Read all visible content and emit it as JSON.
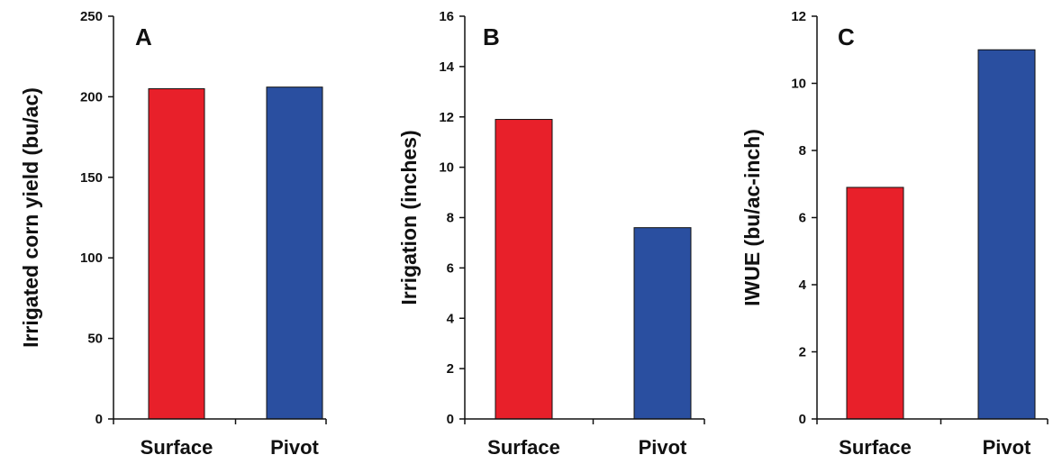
{
  "colors": {
    "surface": "#e8202a",
    "pivot": "#2a4fa0",
    "axis": "#111111"
  },
  "chart_data": [
    {
      "type": "bar",
      "panel": "A",
      "categories": [
        "Surface",
        "Pivot"
      ],
      "values": [
        205,
        206
      ],
      "ylabel": "Irrigated corn yield (bu/ac)",
      "ylim": [
        0,
        250
      ],
      "ticks": [
        0,
        50,
        100,
        150,
        200,
        250
      ],
      "grid": false
    },
    {
      "type": "bar",
      "panel": "B",
      "categories": [
        "Surface",
        "Pivot"
      ],
      "values": [
        11.9,
        7.6
      ],
      "ylabel": "Irrigation (inches)",
      "ylim": [
        0,
        16
      ],
      "ticks": [
        0,
        2,
        4,
        6,
        8,
        10,
        12,
        14,
        16
      ],
      "grid": false
    },
    {
      "type": "bar",
      "panel": "C",
      "categories": [
        "Surface",
        "Pivot"
      ],
      "values": [
        6.9,
        11.0
      ],
      "ylabel": "IWUE (bu/ac-inch)",
      "ylim": [
        0,
        12
      ],
      "ticks": [
        0,
        2,
        4,
        6,
        8,
        10,
        12
      ],
      "grid": false
    }
  ]
}
